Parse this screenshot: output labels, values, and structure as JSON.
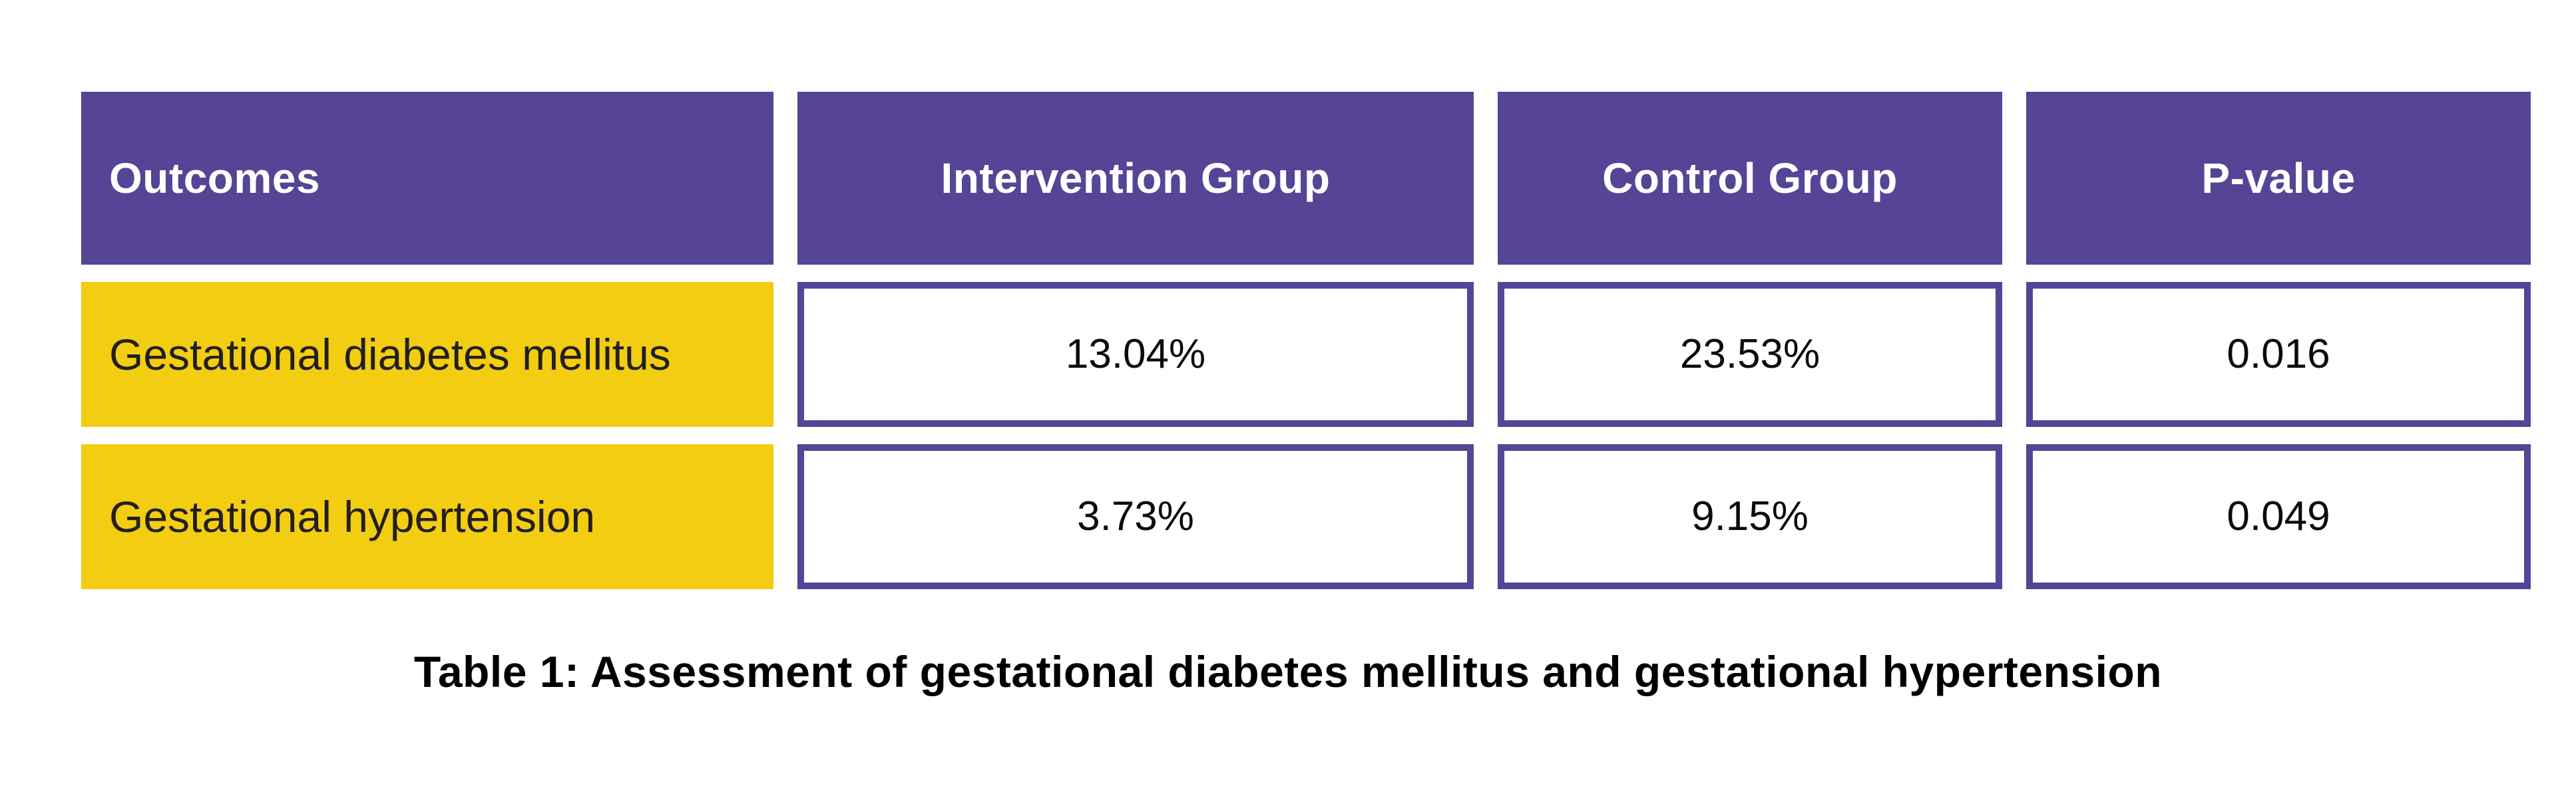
{
  "chart_data": {
    "type": "table",
    "title": "Table 1: Assessment of gestational diabetes mellitus and gestational hypertension",
    "columns": [
      "Outcomes",
      "Intervention Group",
      "Control Group",
      "P-value"
    ],
    "rows": [
      [
        "Gestational diabetes mellitus",
        "13.04%",
        "23.53%",
        "0.016"
      ],
      [
        "Gestational hypertension",
        "3.73%",
        "9.15%",
        "0.049"
      ]
    ],
    "values_numeric": [
      {
        "outcome": "Gestational diabetes mellitus",
        "intervention_pct": 13.04,
        "control_pct": 23.53,
        "p_value": 0.016
      },
      {
        "outcome": "Gestational hypertension",
        "intervention_pct": 3.73,
        "control_pct": 9.15,
        "p_value": 0.049
      }
    ],
    "legend_position": "none",
    "grid": false
  },
  "colors": {
    "page_bg": "#ffffff",
    "header_bg": "#564496",
    "header_text": "#ffffff",
    "outcome_bg": "#f3cd11",
    "outcome_text": "#221f20",
    "cell_bg": "#ffffff",
    "cell_border": "#564496",
    "value_text": "#0b0b0b",
    "caption_text": "#000000"
  }
}
